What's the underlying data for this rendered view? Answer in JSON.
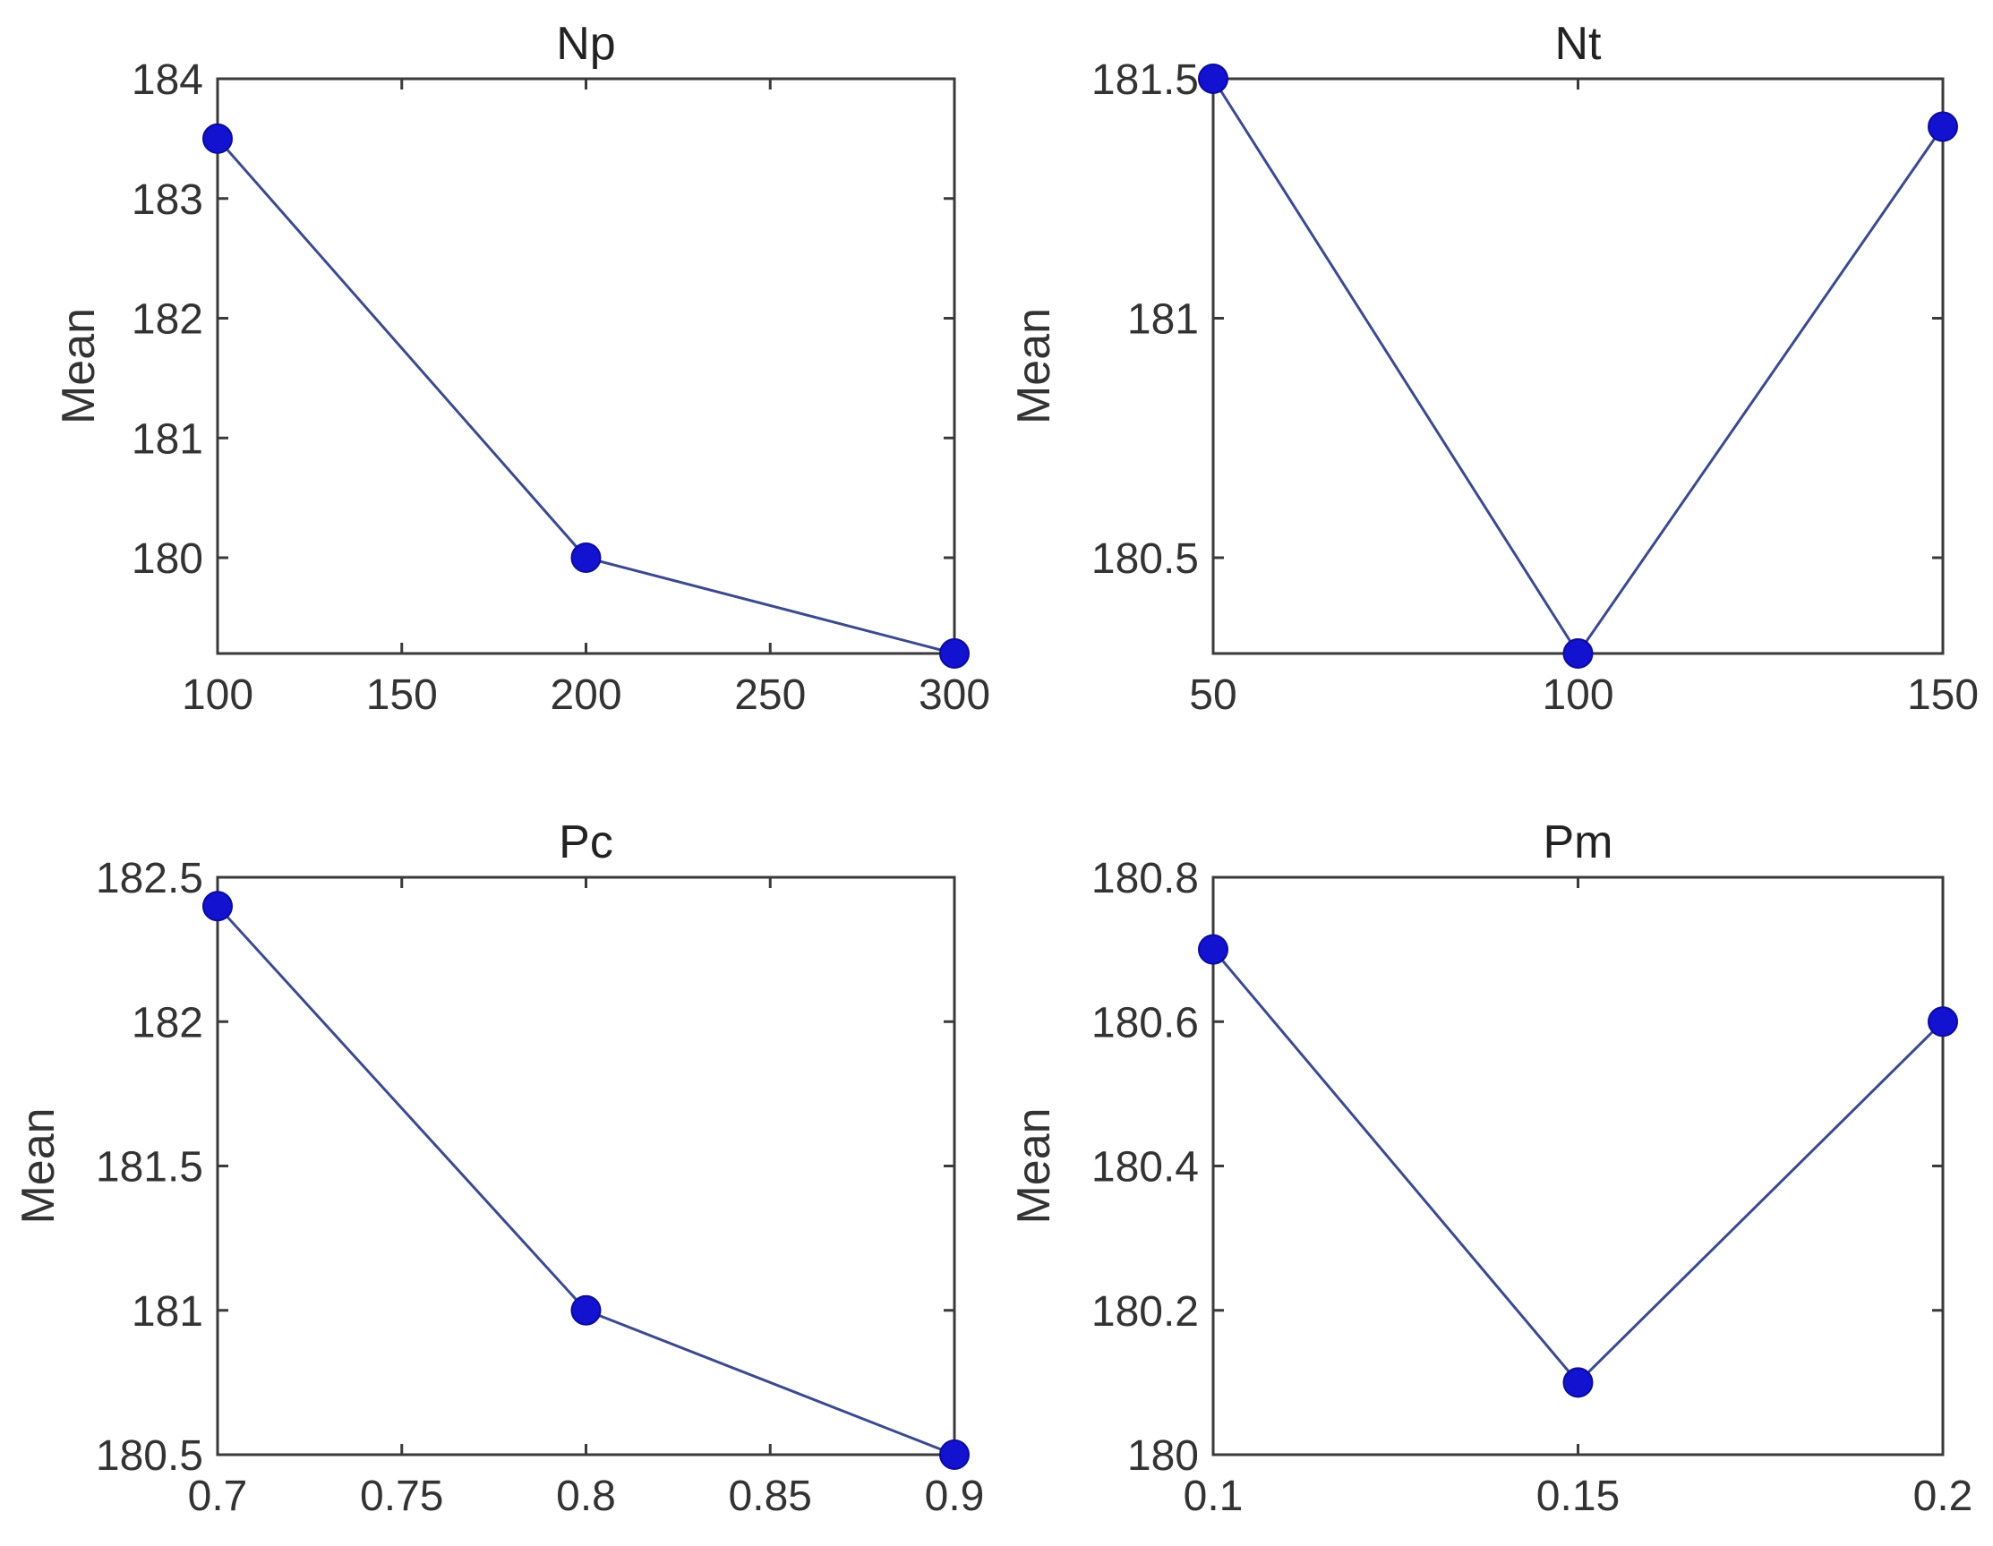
{
  "chart_data": [
    {
      "type": "line",
      "title": "Np",
      "xlabel": "",
      "ylabel": "Mean",
      "x": [
        100,
        200,
        300
      ],
      "values": [
        183.5,
        180.0,
        179.2
      ],
      "xlim": [
        100,
        300
      ],
      "ylim": [
        179.2,
        184
      ],
      "xticks": [
        100,
        150,
        200,
        250,
        300
      ],
      "xtick_labels": [
        "100",
        "150",
        "200",
        "250",
        "300"
      ],
      "yticks": [
        180,
        181,
        182,
        183,
        184
      ],
      "ytick_labels": [
        "180",
        "181",
        "182",
        "183",
        "184"
      ],
      "grid": false
    },
    {
      "type": "line",
      "title": "Nt",
      "xlabel": "",
      "ylabel": "Mean",
      "x": [
        50,
        100,
        150
      ],
      "values": [
        181.5,
        180.3,
        181.4
      ],
      "xlim": [
        50,
        150
      ],
      "ylim": [
        180.3,
        181.5
      ],
      "xticks": [
        50,
        100,
        150
      ],
      "xtick_labels": [
        "50",
        "100",
        "150"
      ],
      "yticks": [
        180.5,
        181,
        181.5
      ],
      "ytick_labels": [
        "180.5",
        "181",
        "181.5"
      ],
      "grid": false
    },
    {
      "type": "line",
      "title": "Pc",
      "xlabel": "",
      "ylabel": "Mean",
      "x": [
        0.7,
        0.8,
        0.9
      ],
      "values": [
        182.4,
        181.0,
        180.5
      ],
      "xlim": [
        0.7,
        0.9
      ],
      "ylim": [
        180.5,
        182.5
      ],
      "xticks": [
        0.7,
        0.75,
        0.8,
        0.85,
        0.9
      ],
      "xtick_labels": [
        "0.7",
        "0.75",
        "0.8",
        "0.85",
        "0.9"
      ],
      "yticks": [
        180.5,
        181,
        181.5,
        182,
        182.5
      ],
      "ytick_labels": [
        "180.5",
        "181",
        "181.5",
        "182",
        "182.5"
      ],
      "grid": false
    },
    {
      "type": "line",
      "title": "Pm",
      "xlabel": "",
      "ylabel": "Mean",
      "x": [
        0.1,
        0.15,
        0.2
      ],
      "values": [
        180.7,
        180.1,
        180.6
      ],
      "xlim": [
        0.1,
        0.2
      ],
      "ylim": [
        180,
        180.8
      ],
      "xticks": [
        0.1,
        0.15,
        0.2
      ],
      "xtick_labels": [
        "0.1",
        "0.15",
        "0.2"
      ],
      "yticks": [
        180,
        180.2,
        180.4,
        180.6,
        180.8
      ],
      "ytick_labels": [
        "180",
        "180.2",
        "180.4",
        "180.6",
        "180.8"
      ],
      "grid": false
    }
  ],
  "colors": {
    "marker": "#1212d0",
    "line": "#3b4a8c",
    "axis": "#3a3a3a"
  }
}
